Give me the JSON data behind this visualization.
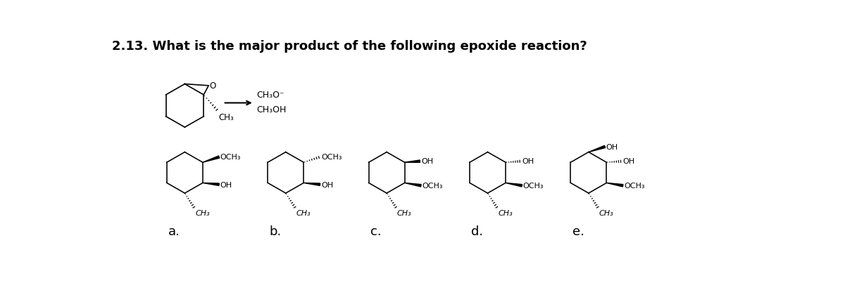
{
  "title": "2.13. What is the major product of the following epoxide reaction?",
  "title_fontsize": 13,
  "title_fontweight": "bold",
  "bg_color": "#ffffff",
  "text_color": "#000000",
  "labels": [
    "a.",
    "b.",
    "c.",
    "d.",
    "e."
  ],
  "label_fontsize": 13,
  "reagent1": "CH₃O⁻",
  "reagent2": "CH₃OH"
}
